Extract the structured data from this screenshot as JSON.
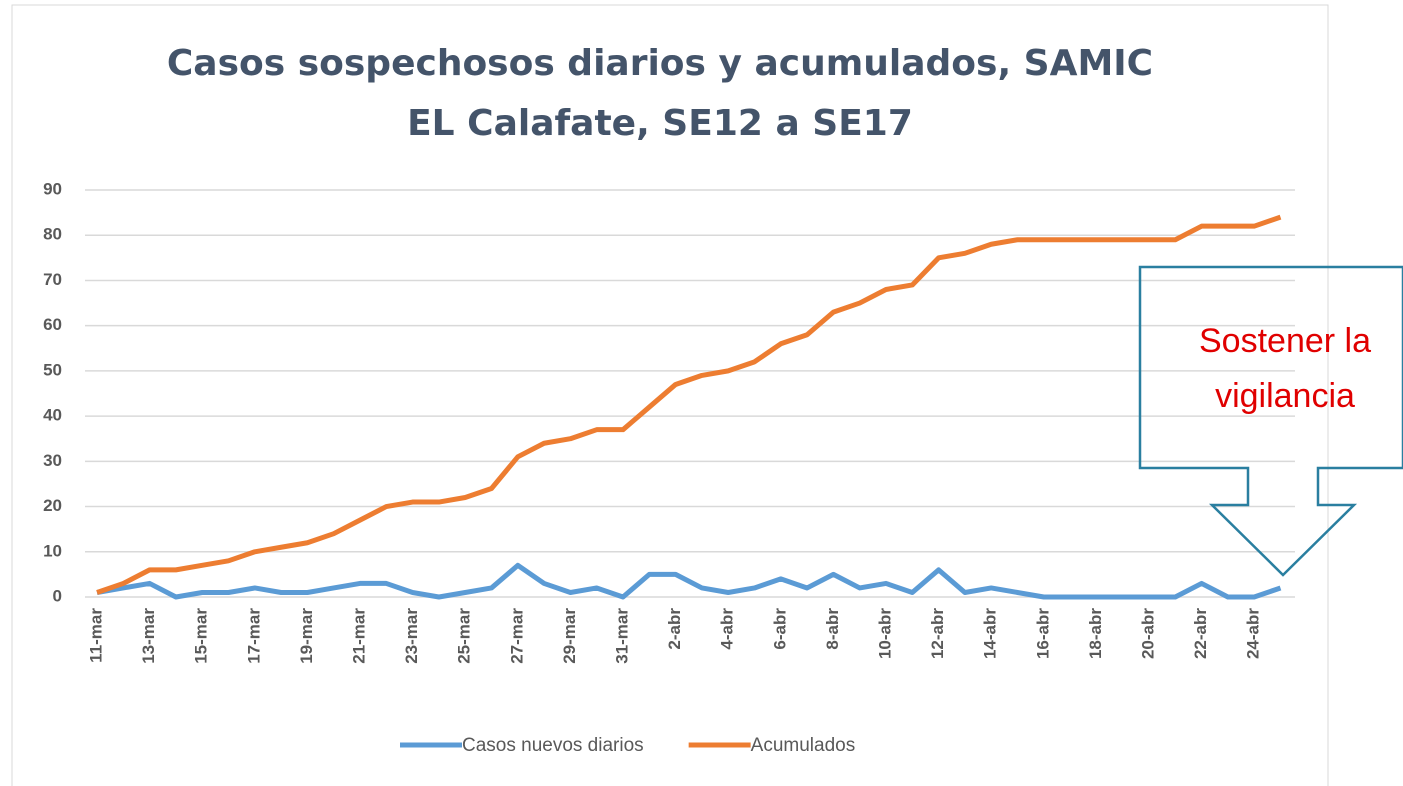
{
  "chart_data": {
    "type": "line",
    "title": [
      "Casos sospechosos  diarios y acumulados, SAMIC",
      "EL Calafate, SE12 a SE17"
    ],
    "annotation": [
      "Sostener la",
      "vigilancia"
    ],
    "categories": [
      "11-mar",
      null,
      "13-mar",
      null,
      "15-mar",
      null,
      "17-mar",
      null,
      "19-mar",
      null,
      "21-mar",
      null,
      "23-mar",
      null,
      "25-mar",
      null,
      "27-mar",
      null,
      "29-mar",
      null,
      "31-mar",
      null,
      "2-abr",
      null,
      "4-abr",
      null,
      "6-abr",
      null,
      "8-abr",
      null,
      "10-abr",
      null,
      "12-abr",
      null,
      "14-abr",
      null,
      "16-abr",
      null,
      "18-abr",
      null,
      "20-abr",
      null,
      "22-abr",
      null,
      "24-abr",
      null
    ],
    "series": [
      {
        "name": "Casos nuevos diarios",
        "color": "#5b9bd5",
        "values": [
          1,
          2,
          3,
          0,
          1,
          1,
          2,
          1,
          1,
          2,
          3,
          3,
          1,
          0,
          1,
          2,
          7,
          3,
          1,
          2,
          0,
          5,
          5,
          2,
          1,
          2,
          4,
          2,
          5,
          2,
          3,
          1,
          6,
          1,
          2,
          1,
          0,
          0,
          0,
          0,
          0,
          0,
          3,
          0,
          0,
          2
        ]
      },
      {
        "name": "Acumulados",
        "color": "#ed7d31",
        "values": [
          1,
          3,
          6,
          6,
          7,
          8,
          10,
          11,
          12,
          14,
          17,
          20,
          21,
          21,
          22,
          24,
          31,
          34,
          35,
          37,
          37,
          42,
          47,
          49,
          50,
          52,
          56,
          58,
          63,
          65,
          68,
          69,
          75,
          76,
          78,
          79,
          79,
          79,
          79,
          79,
          79,
          79,
          82,
          82,
          82,
          84
        ]
      }
    ],
    "ylim": [
      0,
      90
    ],
    "yticks": [
      0,
      10,
      20,
      30,
      40,
      50,
      60,
      70,
      80,
      90
    ],
    "grid": true,
    "legend": "bottom"
  }
}
